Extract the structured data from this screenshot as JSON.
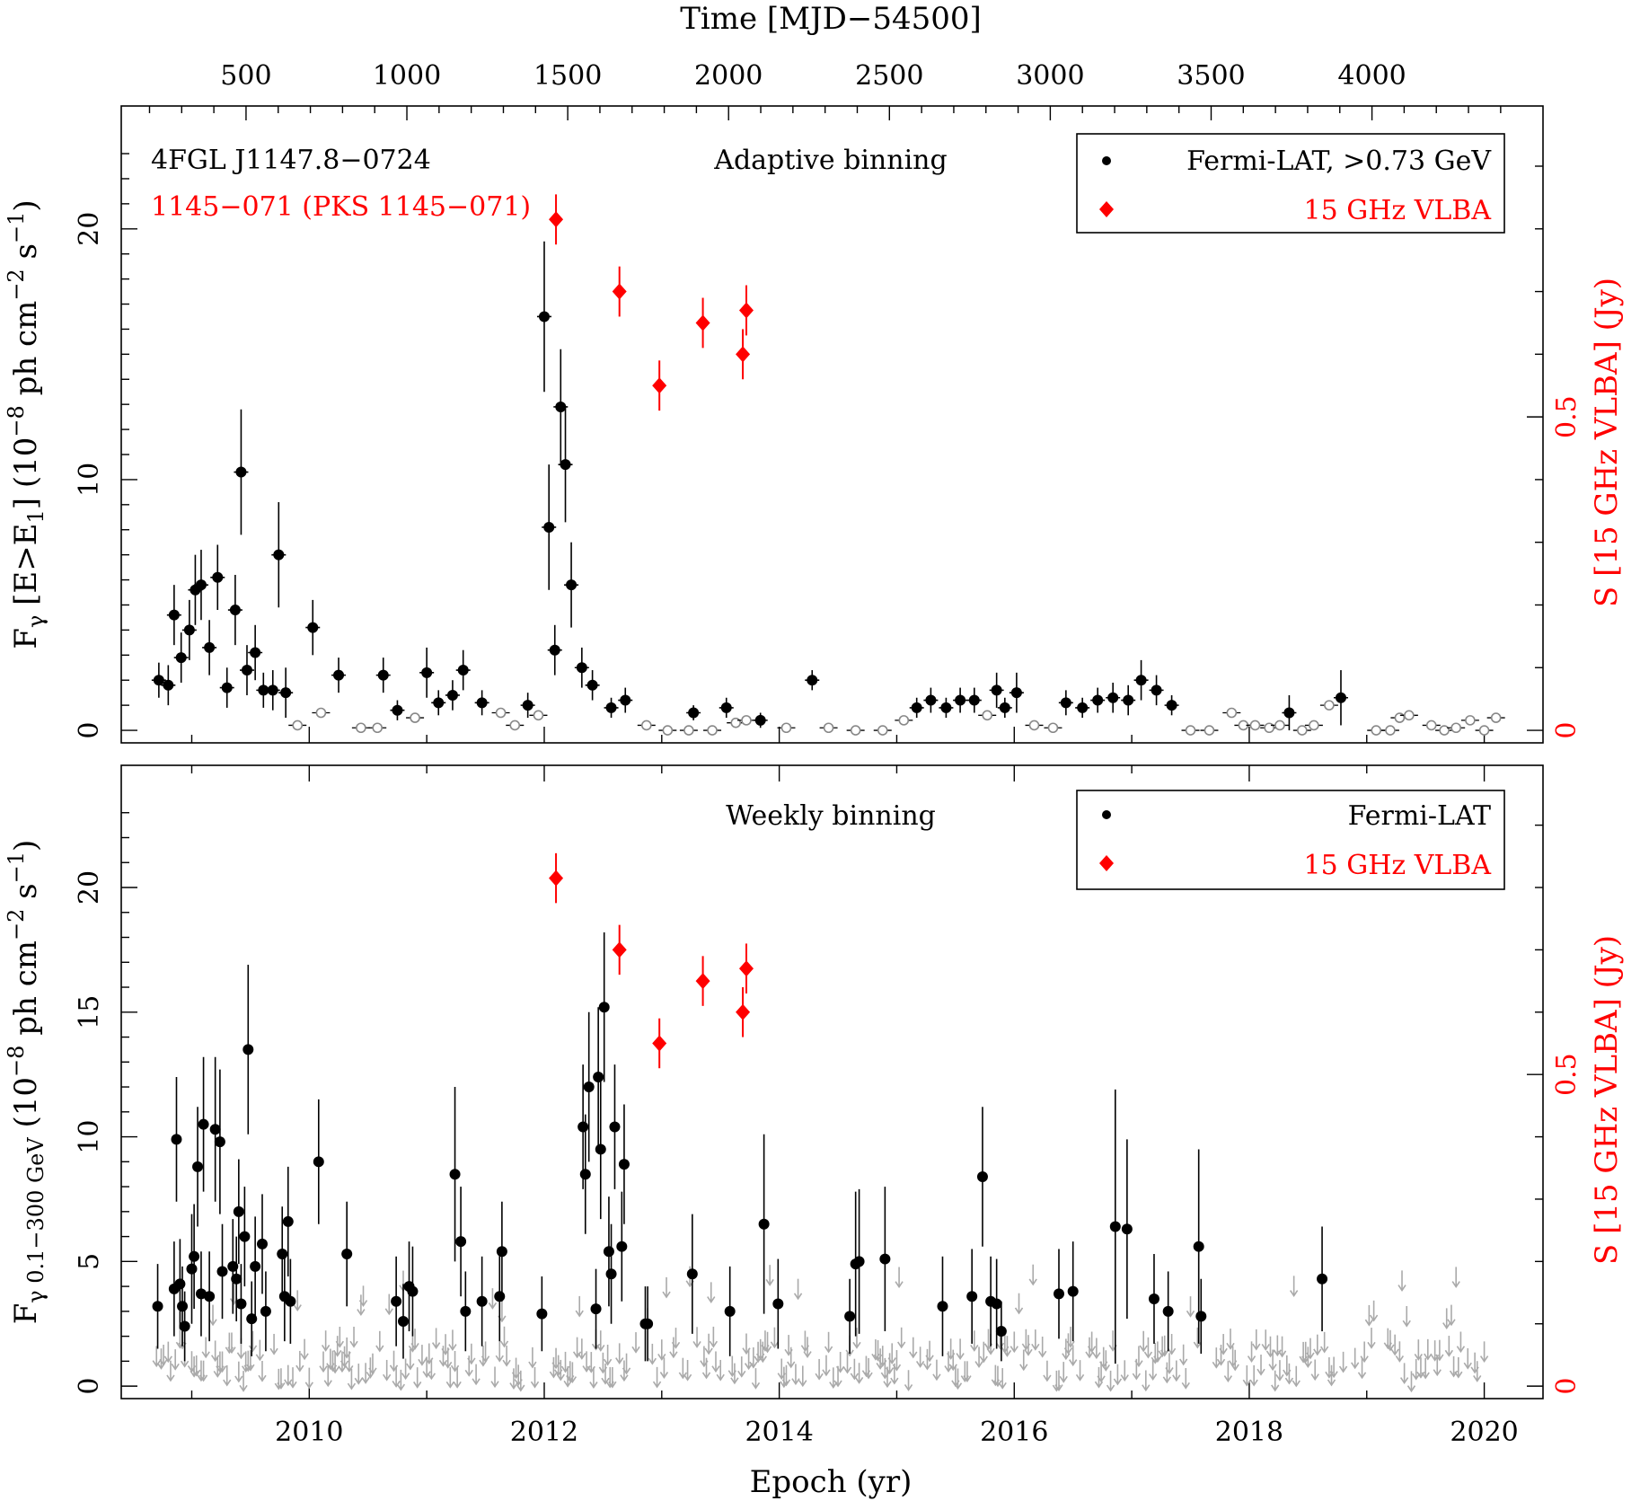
{
  "chart_data": [
    {
      "type": "scatter",
      "panel": "top",
      "top_axis_title": "Time [MJD−54500]",
      "top_axis_ticks": [
        500,
        1000,
        1500,
        2000,
        2500,
        3000,
        3500,
        4000
      ],
      "source_label": "4FGL J1147.8−0724",
      "radio_label": "1145−071 (PKS 1145−071)",
      "panel_label": "Adaptive binning",
      "ylabel_left": [
        "F",
        "γ",
        " [E>E",
        "1",
        "] (10",
        "−8",
        " ph cm",
        "−2",
        " s",
        "−1",
        ")"
      ],
      "ylabel_right": "S [15 GHz VLBA] (Jy)",
      "y_ticks_left": [
        0,
        10,
        20
      ],
      "y_ticks_right": [
        0,
        0.5
      ],
      "y_tick_labels_right": [
        "0",
        "0.5"
      ],
      "ylim": [
        -0.5,
        24.9
      ],
      "ylim_right": [
        0,
        1.0
      ],
      "xlim": [
        2008.4,
        2020.5
      ],
      "legend": {
        "position": "top-right",
        "entries": [
          "Fermi-LAT, >0.73 GeV",
          "15 GHz VLBA"
        ]
      },
      "series": [
        {
          "name": "Fermi-LAT, >0.73 GeV",
          "marker": "filled-circle",
          "color": "#000000",
          "points": [
            [
              2008.72,
              2.0,
              0.7
            ],
            [
              2008.8,
              1.8,
              0.8
            ],
            [
              2008.85,
              4.6,
              1.2
            ],
            [
              2008.91,
              2.9,
              1.0
            ],
            [
              2008.98,
              4.0,
              1.2
            ],
            [
              2009.03,
              5.6,
              1.4
            ],
            [
              2009.08,
              5.8,
              1.4
            ],
            [
              2009.15,
              3.3,
              1.1
            ],
            [
              2009.22,
              6.1,
              1.3
            ],
            [
              2009.3,
              1.7,
              0.8
            ],
            [
              2009.37,
              4.8,
              1.4
            ],
            [
              2009.42,
              10.3,
              2.5
            ],
            [
              2009.47,
              2.4,
              1.0
            ],
            [
              2009.54,
              3.1,
              1.1
            ],
            [
              2009.61,
              1.6,
              0.7
            ],
            [
              2009.69,
              1.6,
              0.8
            ],
            [
              2009.74,
              7.0,
              2.1
            ],
            [
              2009.8,
              1.5,
              1.0
            ],
            [
              2010.03,
              4.1,
              1.1
            ],
            [
              2010.25,
              2.2,
              0.7
            ],
            [
              2010.63,
              2.2,
              0.7
            ],
            [
              2010.75,
              0.8,
              0.4
            ],
            [
              2011.0,
              2.3,
              1.0
            ],
            [
              2011.1,
              1.1,
              0.5
            ],
            [
              2011.22,
              1.4,
              0.6
            ],
            [
              2011.31,
              2.4,
              0.8
            ],
            [
              2011.47,
              1.1,
              0.5
            ],
            [
              2011.86,
              1.0,
              0.5
            ],
            [
              2012.0,
              16.5,
              3.0
            ],
            [
              2012.04,
              8.1,
              2.5
            ],
            [
              2012.09,
              3.2,
              1.0
            ],
            [
              2012.14,
              12.9,
              2.3
            ],
            [
              2012.18,
              10.6,
              2.3
            ],
            [
              2012.23,
              5.8,
              1.7
            ],
            [
              2012.32,
              2.5,
              0.8
            ],
            [
              2012.41,
              1.8,
              0.6
            ],
            [
              2012.57,
              0.9,
              0.4
            ],
            [
              2012.69,
              1.2,
              0.5
            ],
            [
              2013.27,
              0.7,
              0.3
            ],
            [
              2013.55,
              0.9,
              0.4
            ],
            [
              2013.84,
              0.4,
              0.3
            ],
            [
              2014.28,
              2.0,
              0.4
            ],
            [
              2015.17,
              0.9,
              0.4
            ],
            [
              2015.29,
              1.2,
              0.5
            ],
            [
              2015.42,
              0.9,
              0.4
            ],
            [
              2015.54,
              1.2,
              0.5
            ],
            [
              2015.66,
              1.2,
              0.5
            ],
            [
              2015.85,
              1.6,
              0.7
            ],
            [
              2015.92,
              0.9,
              0.4
            ],
            [
              2016.02,
              1.5,
              0.8
            ],
            [
              2016.44,
              1.1,
              0.5
            ],
            [
              2016.58,
              0.9,
              0.4
            ],
            [
              2016.71,
              1.2,
              0.5
            ],
            [
              2016.84,
              1.3,
              0.6
            ],
            [
              2016.97,
              1.2,
              0.6
            ],
            [
              2017.08,
              2.0,
              0.8
            ],
            [
              2017.21,
              1.6,
              0.6
            ],
            [
              2017.34,
              1.0,
              0.4
            ],
            [
              2018.34,
              0.7,
              0.7
            ],
            [
              2018.78,
              1.3,
              1.1
            ]
          ]
        },
        {
          "name": "upper limits",
          "marker": "open-circle",
          "color": "#888888",
          "points": [
            [
              2009.9,
              0.2
            ],
            [
              2010.1,
              0.7
            ],
            [
              2010.44,
              0.1
            ],
            [
              2010.58,
              0.1
            ],
            [
              2010.9,
              0.5
            ],
            [
              2011.63,
              0.7
            ],
            [
              2011.75,
              0.2
            ],
            [
              2011.95,
              0.6
            ],
            [
              2012.87,
              0.2
            ],
            [
              2013.05,
              0.0
            ],
            [
              2013.23,
              0.0
            ],
            [
              2013.43,
              0.0
            ],
            [
              2013.63,
              0.3
            ],
            [
              2013.72,
              0.4
            ],
            [
              2014.06,
              0.1
            ],
            [
              2014.42,
              0.1
            ],
            [
              2014.65,
              0.0
            ],
            [
              2014.88,
              0.0
            ],
            [
              2015.06,
              0.4
            ],
            [
              2015.77,
              0.6
            ],
            [
              2016.17,
              0.2
            ],
            [
              2016.33,
              0.1
            ],
            [
              2017.5,
              0.0
            ],
            [
              2017.66,
              0.0
            ],
            [
              2017.85,
              0.7
            ],
            [
              2017.95,
              0.2
            ],
            [
              2018.05,
              0.2
            ],
            [
              2018.17,
              0.1
            ],
            [
              2018.26,
              0.2
            ],
            [
              2018.45,
              0.0
            ],
            [
              2018.55,
              0.2
            ],
            [
              2018.68,
              1.0
            ],
            [
              2019.08,
              0.0
            ],
            [
              2019.2,
              0.0
            ],
            [
              2019.28,
              0.5
            ],
            [
              2019.36,
              0.6
            ],
            [
              2019.55,
              0.2
            ],
            [
              2019.66,
              0.0
            ],
            [
              2019.76,
              0.1
            ],
            [
              2019.88,
              0.4
            ],
            [
              2020.0,
              0.0
            ],
            [
              2020.1,
              0.5
            ]
          ]
        },
        {
          "name": "15 GHz VLBA",
          "marker": "filled-diamond",
          "color": "#ff0000",
          "axis": "right",
          "points": [
            [
              2012.1,
              0.815,
              0.04
            ],
            [
              2012.64,
              0.7,
              0.04
            ],
            [
              2012.98,
              0.55,
              0.04
            ],
            [
              2013.35,
              0.65,
              0.04
            ],
            [
              2013.69,
              0.6,
              0.04
            ],
            [
              2013.72,
              0.67,
              0.04
            ]
          ]
        }
      ]
    },
    {
      "type": "scatter",
      "panel": "bottom",
      "panel_label": "Weekly binning",
      "ylabel_left": [
        "F",
        "γ 0.1−300 GeV",
        " (10",
        "−8",
        " ph cm",
        "−2",
        " s",
        "−1",
        ")"
      ],
      "ylabel_right": "S [15 GHz VLBA] (Jy)",
      "xlabel": "Epoch (yr)",
      "x_ticks": [
        2010,
        2012,
        2014,
        2016,
        2018,
        2020
      ],
      "y_ticks_left": [
        0,
        5,
        10,
        15,
        20
      ],
      "y_ticks_right": [
        0,
        0.5
      ],
      "y_tick_labels_right": [
        "0",
        "0.5"
      ],
      "ylim": [
        -0.5,
        24.9
      ],
      "ylim_right": [
        0,
        1.0
      ],
      "xlim": [
        2008.4,
        2020.5
      ],
      "legend": {
        "position": "top-right",
        "entries": [
          "Fermi-LAT",
          "15 GHz VLBA"
        ]
      },
      "series": [
        {
          "name": "Fermi-LAT",
          "marker": "filled-circle",
          "color": "#000000",
          "points": [
            [
              2008.71,
              3.2,
              1.7
            ],
            [
              2008.85,
              3.9,
              1.9
            ],
            [
              2008.87,
              9.9,
              2.5
            ],
            [
              2008.9,
              4.1,
              1.8
            ],
            [
              2008.92,
              3.2,
              1.6
            ],
            [
              2008.94,
              2.4,
              1.4
            ],
            [
              2009.0,
              4.7,
              2.2
            ],
            [
              2009.02,
              5.2,
              2.1
            ],
            [
              2009.05,
              8.8,
              2.4
            ],
            [
              2009.08,
              3.7,
              1.7
            ],
            [
              2009.1,
              10.5,
              2.7
            ],
            [
              2009.15,
              3.6,
              1.8
            ],
            [
              2009.2,
              10.3,
              2.9
            ],
            [
              2009.24,
              9.8,
              2.9
            ],
            [
              2009.26,
              4.6,
              1.9
            ],
            [
              2009.35,
              4.8,
              1.9
            ],
            [
              2009.38,
              4.3,
              1.7
            ],
            [
              2009.4,
              7.0,
              2.1
            ],
            [
              2009.42,
              3.3,
              1.6
            ],
            [
              2009.45,
              6.0,
              2.0
            ],
            [
              2009.48,
              13.5,
              3.4
            ],
            [
              2009.51,
              2.7,
              1.5
            ],
            [
              2009.54,
              4.8,
              2.0
            ],
            [
              2009.6,
              5.7,
              2.0
            ],
            [
              2009.63,
              3.0,
              1.6
            ],
            [
              2009.77,
              5.3,
              1.9
            ],
            [
              2009.79,
              3.6,
              1.8
            ],
            [
              2009.82,
              6.6,
              2.2
            ],
            [
              2009.84,
              3.4,
              1.7
            ],
            [
              2010.08,
              9.0,
              2.5
            ],
            [
              2010.32,
              5.3,
              2.1
            ],
            [
              2010.74,
              3.4,
              1.8
            ],
            [
              2010.8,
              2.6,
              1.5
            ],
            [
              2010.85,
              4.0,
              1.8
            ],
            [
              2010.88,
              3.8,
              1.8
            ],
            [
              2011.24,
              8.5,
              3.5
            ],
            [
              2011.29,
              5.8,
              2.2
            ],
            [
              2011.33,
              3.0,
              1.6
            ],
            [
              2011.47,
              3.4,
              1.8
            ],
            [
              2011.62,
              3.6,
              1.8
            ],
            [
              2011.64,
              5.4,
              2.0
            ],
            [
              2011.98,
              2.9,
              1.5
            ],
            [
              2012.33,
              10.4,
              2.5
            ],
            [
              2012.35,
              8.5,
              2.4
            ],
            [
              2012.38,
              12.0,
              3.0
            ],
            [
              2012.44,
              3.1,
              1.6
            ],
            [
              2012.46,
              12.4,
              2.8
            ],
            [
              2012.48,
              9.5,
              2.8
            ],
            [
              2012.51,
              15.2,
              3.0
            ],
            [
              2012.55,
              5.4,
              2.2
            ],
            [
              2012.57,
              4.5,
              2.0
            ],
            [
              2012.6,
              10.4,
              2.5
            ],
            [
              2012.66,
              5.6,
              2.2
            ],
            [
              2012.68,
              8.9,
              2.4
            ],
            [
              2012.86,
              2.5,
              1.5
            ],
            [
              2012.88,
              2.5,
              1.5
            ],
            [
              2013.26,
              4.5,
              2.4
            ],
            [
              2013.58,
              3.0,
              1.8
            ],
            [
              2013.87,
              6.5,
              3.6
            ],
            [
              2013.99,
              3.3,
              1.8
            ],
            [
              2014.6,
              2.8,
              1.5
            ],
            [
              2014.65,
              4.9,
              2.9
            ],
            [
              2014.68,
              5.0,
              2.9
            ],
            [
              2014.9,
              5.1,
              2.9
            ],
            [
              2015.39,
              3.2,
              2.0
            ],
            [
              2015.64,
              3.6,
              1.9
            ],
            [
              2015.73,
              8.4,
              2.8
            ],
            [
              2015.8,
              3.4,
              1.8
            ],
            [
              2015.85,
              3.3,
              1.8
            ],
            [
              2015.89,
              2.2,
              1.2
            ],
            [
              2016.38,
              3.7,
              1.8
            ],
            [
              2016.5,
              3.8,
              2.0
            ],
            [
              2016.86,
              6.4,
              5.5
            ],
            [
              2016.96,
              6.3,
              3.6
            ],
            [
              2017.19,
              3.5,
              1.8
            ],
            [
              2017.31,
              3.0,
              1.6
            ],
            [
              2017.57,
              5.6,
              3.9
            ],
            [
              2017.59,
              2.8,
              1.5
            ],
            [
              2018.62,
              4.3,
              2.1
            ]
          ]
        },
        {
          "name": "15 GHz VLBA",
          "marker": "filled-diamond",
          "color": "#ff0000",
          "axis": "right",
          "points": [
            [
              2012.1,
              0.815,
              0.04
            ],
            [
              2012.64,
              0.7,
              0.04
            ],
            [
              2012.98,
              0.55,
              0.04
            ],
            [
              2013.35,
              0.65,
              0.04
            ],
            [
              2013.69,
              0.6,
              0.04
            ],
            [
              2013.72,
              0.67,
              0.04
            ]
          ]
        }
      ]
    }
  ]
}
